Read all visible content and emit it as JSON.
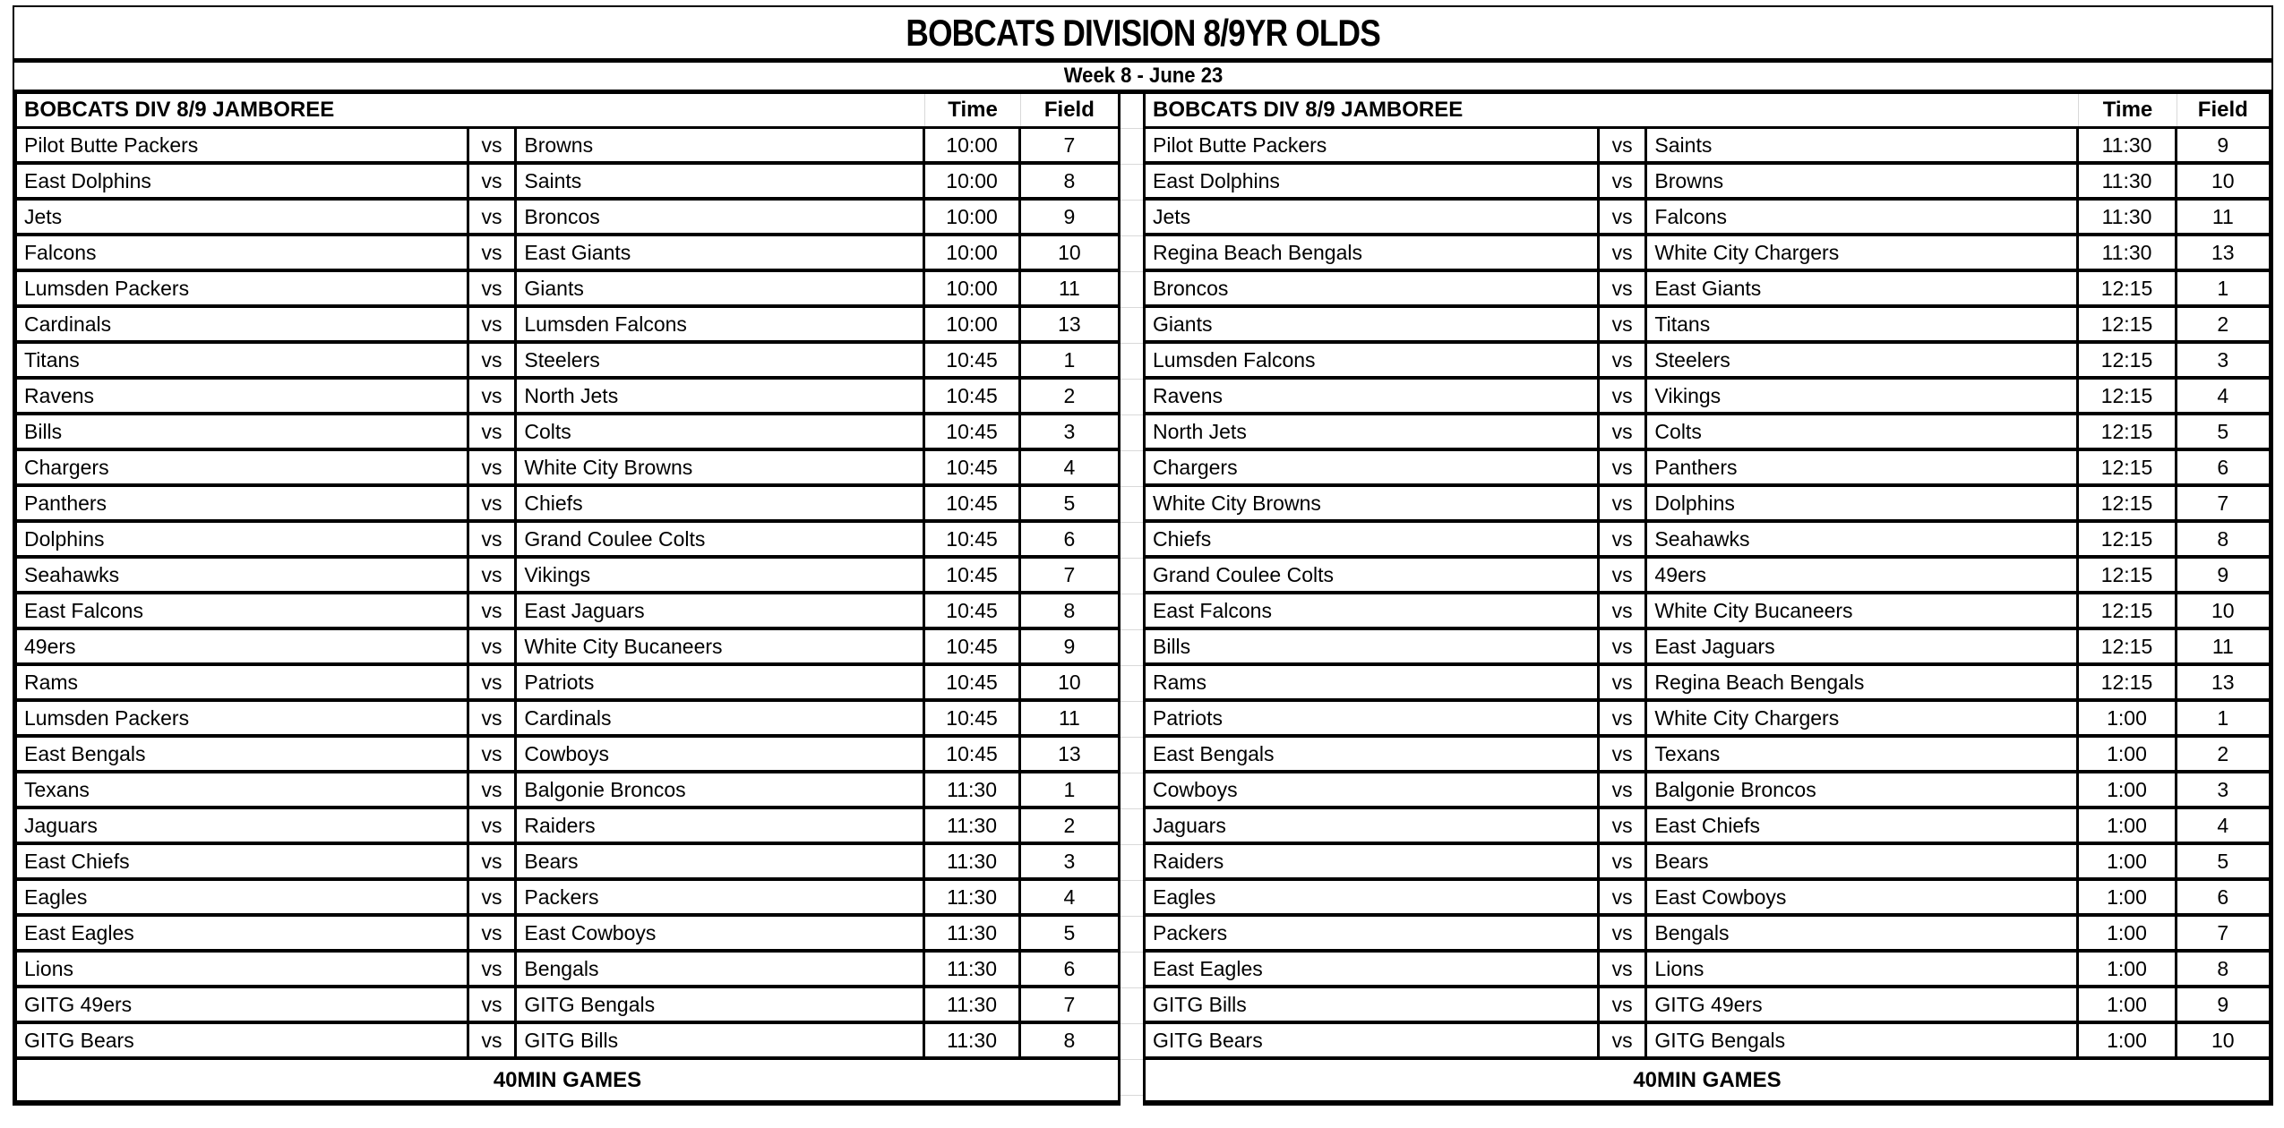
{
  "title": "BOBCATS DIVISION 8/9YR OLDS",
  "subtitle": "Week 8 - June 23",
  "colors": {
    "border": "#000000",
    "gridline": "#d9d9d9",
    "background": "#ffffff",
    "text": "#000000"
  },
  "tables": [
    {
      "header": "BOBCATS DIV 8/9 JAMBOREE",
      "time_label": "Time",
      "field_label": "Field",
      "vs_label": "vs",
      "footer": "40MIN GAMES",
      "rows": [
        {
          "home": "Pilot Butte Packers",
          "away": "Browns",
          "time": "10:00",
          "field": "7"
        },
        {
          "home": "East Dolphins",
          "away": "Saints",
          "time": "10:00",
          "field": "8"
        },
        {
          "home": "Jets",
          "away": "Broncos",
          "time": "10:00",
          "field": "9"
        },
        {
          "home": "Falcons",
          "away": "East Giants",
          "time": "10:00",
          "field": "10"
        },
        {
          "home": "Lumsden Packers",
          "away": "Giants",
          "time": "10:00",
          "field": "11"
        },
        {
          "home": "Cardinals",
          "away": "Lumsden Falcons",
          "time": "10:00",
          "field": "13"
        },
        {
          "home": "Titans",
          "away": "Steelers",
          "time": "10:45",
          "field": "1"
        },
        {
          "home": "Ravens",
          "away": "North Jets",
          "time": "10:45",
          "field": "2"
        },
        {
          "home": "Bills",
          "away": "Colts",
          "time": "10:45",
          "field": "3"
        },
        {
          "home": "Chargers",
          "away": "White City Browns",
          "time": "10:45",
          "field": "4"
        },
        {
          "home": "Panthers",
          "away": "Chiefs",
          "time": "10:45",
          "field": "5"
        },
        {
          "home": "Dolphins",
          "away": "Grand Coulee Colts",
          "time": "10:45",
          "field": "6"
        },
        {
          "home": "Seahawks",
          "away": "Vikings",
          "time": "10:45",
          "field": "7"
        },
        {
          "home": "East Falcons",
          "away": "East Jaguars",
          "time": "10:45",
          "field": "8"
        },
        {
          "home": "49ers",
          "away": "White City Bucaneers",
          "time": "10:45",
          "field": "9"
        },
        {
          "home": "Rams",
          "away": "Patriots",
          "time": "10:45",
          "field": "10"
        },
        {
          "home": "Lumsden Packers",
          "away": "Cardinals",
          "time": "10:45",
          "field": "11"
        },
        {
          "home": "East Bengals",
          "away": "Cowboys",
          "time": "10:45",
          "field": "13"
        },
        {
          "home": "Texans",
          "away": "Balgonie Broncos",
          "time": "11:30",
          "field": "1"
        },
        {
          "home": "Jaguars",
          "away": "Raiders",
          "time": "11:30",
          "field": "2"
        },
        {
          "home": "East Chiefs",
          "away": "Bears",
          "time": "11:30",
          "field": "3"
        },
        {
          "home": "Eagles",
          "away": "Packers",
          "time": "11:30",
          "field": "4"
        },
        {
          "home": "East Eagles",
          "away": "East Cowboys",
          "time": "11:30",
          "field": "5"
        },
        {
          "home": "Lions",
          "away": "Bengals",
          "time": "11:30",
          "field": "6"
        },
        {
          "home": "GITG 49ers",
          "away": "GITG Bengals",
          "time": "11:30",
          "field": "7"
        },
        {
          "home": "GITG Bears",
          "away": "GITG Bills",
          "time": "11:30",
          "field": "8"
        }
      ]
    },
    {
      "header": "BOBCATS DIV 8/9 JAMBOREE",
      "time_label": "Time",
      "field_label": "Field",
      "vs_label": "vs",
      "footer": "40MIN GAMES",
      "rows": [
        {
          "home": "Pilot Butte Packers",
          "away": "Saints",
          "time": "11:30",
          "field": "9"
        },
        {
          "home": "East Dolphins",
          "away": "Browns",
          "time": "11:30",
          "field": "10"
        },
        {
          "home": "Jets",
          "away": "Falcons",
          "time": "11:30",
          "field": "11"
        },
        {
          "home": "Regina Beach Bengals",
          "away": "White City Chargers",
          "time": "11:30",
          "field": "13"
        },
        {
          "home": "Broncos",
          "away": "East Giants",
          "time": "12:15",
          "field": "1"
        },
        {
          "home": "Giants",
          "away": "Titans",
          "time": "12:15",
          "field": "2"
        },
        {
          "home": "Lumsden Falcons",
          "away": "Steelers",
          "time": "12:15",
          "field": "3"
        },
        {
          "home": "Ravens",
          "away": "Vikings",
          "time": "12:15",
          "field": "4"
        },
        {
          "home": "North Jets",
          "away": "Colts",
          "time": "12:15",
          "field": "5"
        },
        {
          "home": "Chargers",
          "away": "Panthers",
          "time": "12:15",
          "field": "6"
        },
        {
          "home": "White City Browns",
          "away": "Dolphins",
          "time": "12:15",
          "field": "7"
        },
        {
          "home": "Chiefs",
          "away": "Seahawks",
          "time": "12:15",
          "field": "8"
        },
        {
          "home": "Grand Coulee Colts",
          "away": "49ers",
          "time": "12:15",
          "field": "9"
        },
        {
          "home": "East Falcons",
          "away": "White City Bucaneers",
          "time": "12:15",
          "field": "10"
        },
        {
          "home": "Bills",
          "away": "East Jaguars",
          "time": "12:15",
          "field": "11"
        },
        {
          "home": "Rams",
          "away": "Regina Beach Bengals",
          "time": "12:15",
          "field": "13"
        },
        {
          "home": "Patriots",
          "away": "White City Chargers",
          "time": "1:00",
          "field": "1"
        },
        {
          "home": "East Bengals",
          "away": "Texans",
          "time": "1:00",
          "field": "2"
        },
        {
          "home": "Cowboys",
          "away": "Balgonie Broncos",
          "time": "1:00",
          "field": "3"
        },
        {
          "home": "Jaguars",
          "away": "East Chiefs",
          "time": "1:00",
          "field": "4"
        },
        {
          "home": "Raiders",
          "away": "Bears",
          "time": "1:00",
          "field": "5"
        },
        {
          "home": "Eagles",
          "away": "East Cowboys",
          "time": "1:00",
          "field": "6"
        },
        {
          "home": "Packers",
          "away": "Bengals",
          "time": "1:00",
          "field": "7"
        },
        {
          "home": "East Eagles",
          "away": "Lions",
          "time": "1:00",
          "field": "8"
        },
        {
          "home": "GITG Bills",
          "away": "GITG 49ers",
          "time": "1:00",
          "field": "9"
        },
        {
          "home": "GITG Bears",
          "away": "GITG Bengals",
          "time": "1:00",
          "field": "10"
        }
      ]
    }
  ]
}
